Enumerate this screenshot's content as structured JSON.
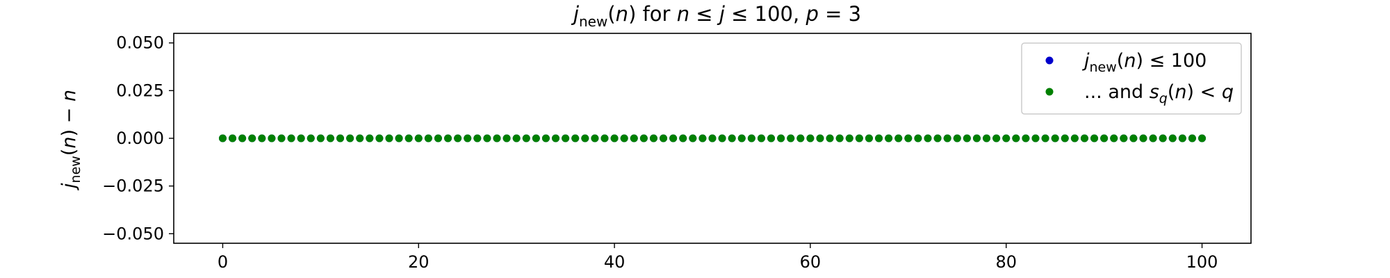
{
  "chart_data": {
    "type": "scatter",
    "title": "j_new(n) for n ≤ j ≤ 100, p = 3",
    "title_parts": {
      "j": "j",
      "new": "new",
      "rest1": "(",
      "n": "n",
      "rest2": ") for ",
      "n2": "n",
      "rest3": " ≤ ",
      "j2": "j",
      "rest4": " ≤ 100, ",
      "p": "p",
      "rest5": " = 3"
    },
    "xlabel": "",
    "ylabel": "j_new(n) − n",
    "ylabel_parts": {
      "j": "j",
      "new": "new",
      "rest1": "(",
      "n": "n",
      "rest2": ") − ",
      "n2": "n"
    },
    "xlim": [
      -5,
      105
    ],
    "ylim": [
      -0.055,
      0.055
    ],
    "xticks": [
      0,
      20,
      40,
      60,
      80,
      100
    ],
    "xtick_labels": [
      "0",
      "20",
      "40",
      "60",
      "80",
      "100"
    ],
    "yticks": [
      0.05,
      0.025,
      0.0,
      -0.025,
      -0.05
    ],
    "ytick_labels": [
      "0.050",
      "0.025",
      "0.000",
      "−0.025",
      "−0.050"
    ],
    "grid": false,
    "legend_position": "top-right",
    "series": [
      {
        "name": "j_new(n) ≤ 100",
        "legend_parts": {
          "j": "j",
          "new": "new",
          "rest1": "(",
          "n": "n",
          "rest2": ") ≤ 100"
        },
        "color": "#0000cc",
        "x": [
          0,
          1,
          2,
          3,
          4,
          5,
          6,
          7,
          8,
          9,
          10,
          11,
          12,
          13,
          14,
          15,
          16,
          17,
          18,
          19,
          20,
          21,
          22,
          23,
          24,
          25,
          26,
          27,
          28,
          29,
          30,
          31,
          32,
          33,
          34,
          35,
          36,
          37,
          38,
          39,
          40,
          41,
          42,
          43,
          44,
          45,
          46,
          47,
          48,
          49,
          50,
          51,
          52,
          53,
          54,
          55,
          56,
          57,
          58,
          59,
          60,
          61,
          62,
          63,
          64,
          65,
          66,
          67,
          68,
          69,
          70,
          71,
          72,
          73,
          74,
          75,
          76,
          77,
          78,
          79,
          80,
          81,
          82,
          83,
          84,
          85,
          86,
          87,
          88,
          89,
          90,
          91,
          92,
          93,
          94,
          95,
          96,
          97,
          98,
          99,
          100
        ],
        "y": [
          0,
          0,
          0,
          0,
          0,
          0,
          0,
          0,
          0,
          0,
          0,
          0,
          0,
          0,
          0,
          0,
          0,
          0,
          0,
          0,
          0,
          0,
          0,
          0,
          0,
          0,
          0,
          0,
          0,
          0,
          0,
          0,
          0,
          0,
          0,
          0,
          0,
          0,
          0,
          0,
          0,
          0,
          0,
          0,
          0,
          0,
          0,
          0,
          0,
          0,
          0,
          0,
          0,
          0,
          0,
          0,
          0,
          0,
          0,
          0,
          0,
          0,
          0,
          0,
          0,
          0,
          0,
          0,
          0,
          0,
          0,
          0,
          0,
          0,
          0,
          0,
          0,
          0,
          0,
          0,
          0,
          0,
          0,
          0,
          0,
          0,
          0,
          0,
          0,
          0,
          0,
          0,
          0,
          0,
          0,
          0,
          0,
          0,
          0,
          0,
          0
        ]
      },
      {
        "name": "... and s_q(n) < q",
        "legend_parts": {
          "pre": "... and ",
          "s": "s",
          "q": "q",
          "rest1": "(",
          "n": "n",
          "rest2": ") < ",
          "q2": "q"
        },
        "color": "#008000",
        "x": [
          0,
          1,
          2,
          3,
          4,
          5,
          6,
          7,
          8,
          9,
          10,
          11,
          12,
          13,
          14,
          15,
          16,
          17,
          18,
          19,
          20,
          21,
          22,
          23,
          24,
          25,
          26,
          27,
          28,
          29,
          30,
          31,
          32,
          33,
          34,
          35,
          36,
          37,
          38,
          39,
          40,
          41,
          42,
          43,
          44,
          45,
          46,
          47,
          48,
          49,
          50,
          51,
          52,
          53,
          54,
          55,
          56,
          57,
          58,
          59,
          60,
          61,
          62,
          63,
          64,
          65,
          66,
          67,
          68,
          69,
          70,
          71,
          72,
          73,
          74,
          75,
          76,
          77,
          78,
          79,
          80,
          81,
          82,
          83,
          84,
          85,
          86,
          87,
          88,
          89,
          90,
          91,
          92,
          93,
          94,
          95,
          96,
          97,
          98,
          99,
          100
        ],
        "y": [
          0,
          0,
          0,
          0,
          0,
          0,
          0,
          0,
          0,
          0,
          0,
          0,
          0,
          0,
          0,
          0,
          0,
          0,
          0,
          0,
          0,
          0,
          0,
          0,
          0,
          0,
          0,
          0,
          0,
          0,
          0,
          0,
          0,
          0,
          0,
          0,
          0,
          0,
          0,
          0,
          0,
          0,
          0,
          0,
          0,
          0,
          0,
          0,
          0,
          0,
          0,
          0,
          0,
          0,
          0,
          0,
          0,
          0,
          0,
          0,
          0,
          0,
          0,
          0,
          0,
          0,
          0,
          0,
          0,
          0,
          0,
          0,
          0,
          0,
          0,
          0,
          0,
          0,
          0,
          0,
          0,
          0,
          0,
          0,
          0,
          0,
          0,
          0,
          0,
          0,
          0,
          0,
          0,
          0,
          0,
          0,
          0,
          0,
          0,
          0,
          0
        ]
      }
    ]
  }
}
